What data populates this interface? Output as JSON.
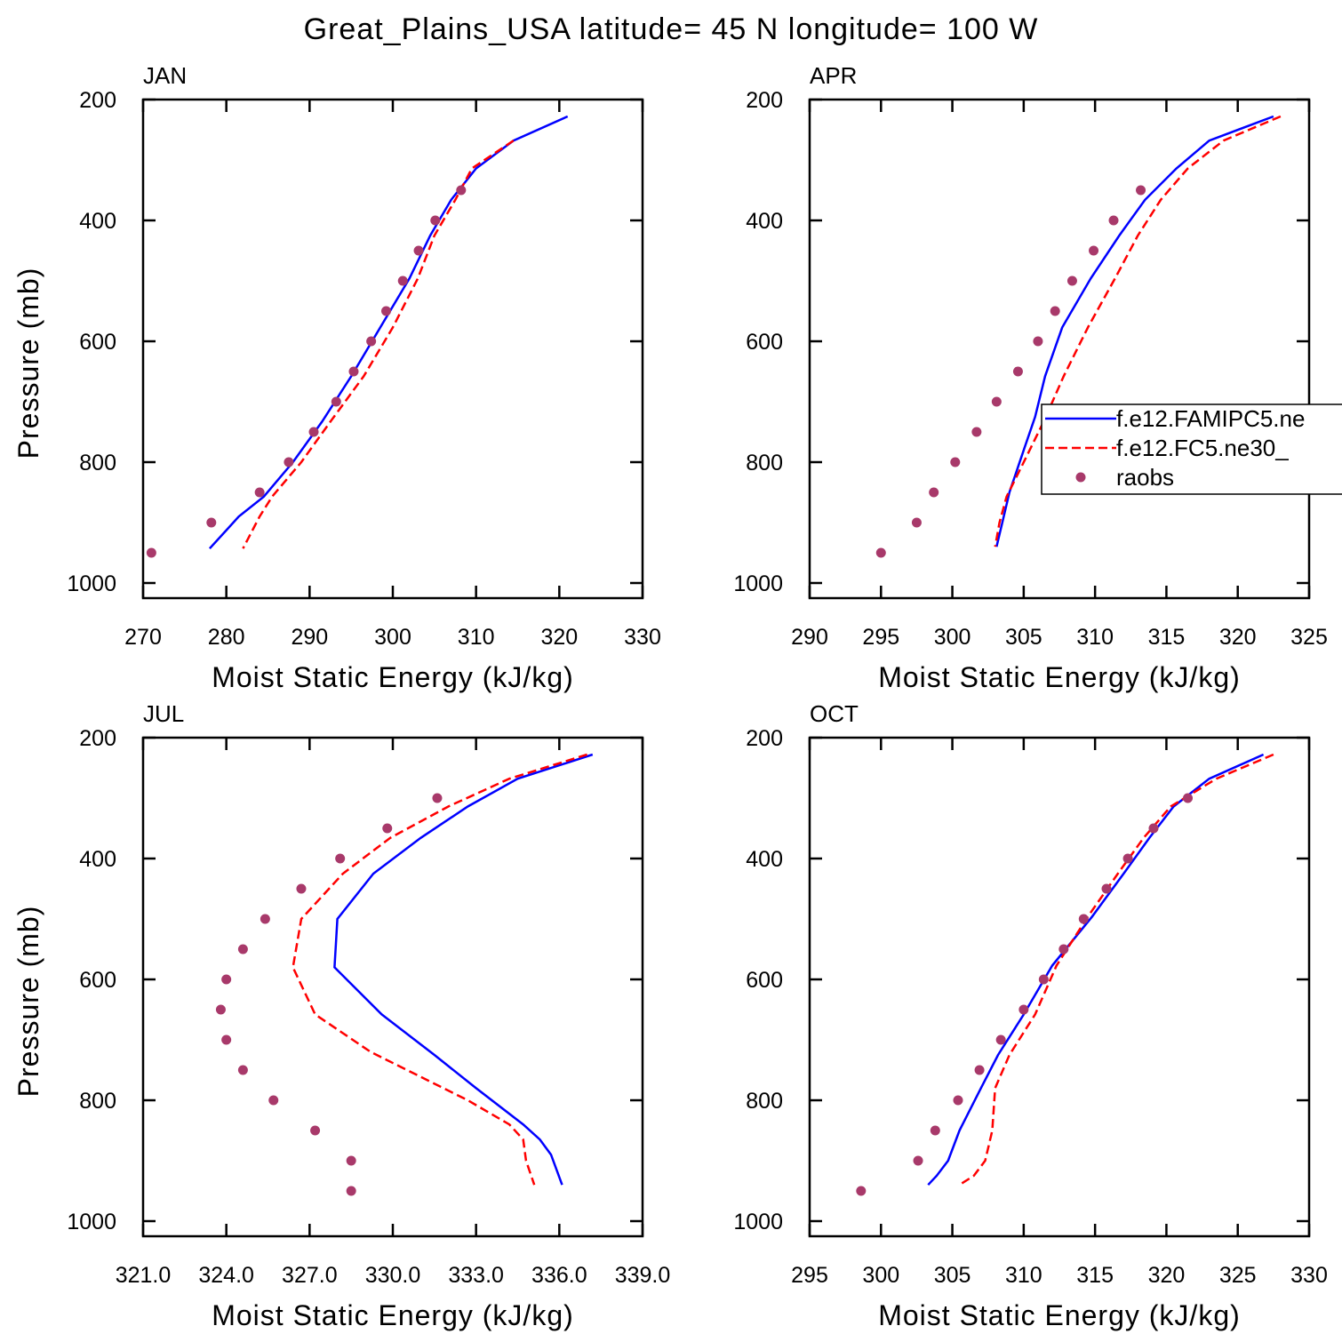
{
  "title": "Great_Plains_USA  latitude= 45 N longitude= 100 W",
  "chart_data": [
    {
      "type": "line",
      "title": "JAN",
      "xlabel": "Moist Static Energy (kJ/kg)",
      "ylabel": "Pressure (mb)",
      "xlim": [
        270,
        330
      ],
      "xticks": [
        270,
        280,
        290,
        300,
        310,
        320,
        330
      ],
      "ylim": [
        1025,
        200
      ],
      "yticks": [
        200,
        400,
        600,
        800,
        1000
      ],
      "series": [
        {
          "color": "#0000ff",
          "style": "solid",
          "values": [
            321.0,
            314.5,
            310.0,
            307.0,
            304.5,
            302.0,
            298.5,
            295.0,
            291.5,
            288.0,
            284.5,
            281.5,
            278.0
          ],
          "levels": [
            228,
            268,
            314,
            366,
            425,
            496,
            577,
            658,
            733,
            800,
            857,
            890,
            943
          ]
        },
        {
          "color": "#ff0000",
          "style": "dashed",
          "values": [
            314.5,
            309.5,
            307.5,
            305.0,
            303.0,
            300.0,
            296.5,
            292.5,
            289.0,
            285.5,
            284.0,
            282.0
          ],
          "levels": [
            268,
            314,
            366,
            425,
            496,
            577,
            658,
            733,
            800,
            857,
            890,
            943
          ]
        },
        {
          "color": "#a8396a",
          "style": "markers",
          "values": [
            271.0,
            278.2,
            284.0,
            287.5,
            290.5,
            293.2,
            295.3,
            297.4,
            299.2,
            301.2,
            303.1,
            305.1,
            308.2
          ],
          "levels": [
            950,
            900,
            850,
            800,
            750,
            700,
            650,
            600,
            550,
            500,
            450,
            400,
            350
          ]
        }
      ]
    },
    {
      "type": "line",
      "title": "APR",
      "xlabel": "Moist Static Energy (kJ/kg)",
      "xlim": [
        290,
        325
      ],
      "xticks": [
        290,
        295,
        300,
        305,
        310,
        315,
        320,
        325
      ],
      "ylim": [
        1025,
        200
      ],
      "yticks": [
        200,
        400,
        600,
        800,
        1000
      ],
      "legend": "right",
      "series": [
        {
          "name": "f.e12.FAMIPC5.ne",
          "color": "#0000ff",
          "style": "solid",
          "values": [
            322.5,
            318.0,
            315.7,
            313.5,
            311.7,
            309.7,
            307.7,
            306.5,
            305.8,
            305.0,
            304.0,
            303.5,
            303.1
          ],
          "levels": [
            228,
            268,
            314,
            366,
            425,
            496,
            577,
            658,
            725,
            780,
            850,
            900,
            940
          ]
        },
        {
          "name": "f.e12.FC5.ne30_",
          "color": "#ff0000",
          "style": "dashed",
          "values": [
            323.0,
            319.0,
            316.5,
            314.6,
            313.0,
            311.4,
            309.5,
            307.8,
            306.4,
            305.0,
            303.8,
            303.3,
            303.0
          ],
          "levels": [
            228,
            268,
            314,
            366,
            425,
            496,
            577,
            658,
            733,
            800,
            857,
            900,
            940
          ]
        },
        {
          "name": "raobs",
          "color": "#a8396a",
          "style": "markers",
          "values": [
            295.0,
            297.5,
            298.7,
            300.2,
            301.7,
            303.1,
            304.6,
            306.0,
            307.2,
            308.4,
            309.9,
            311.3,
            313.2
          ],
          "levels": [
            950,
            900,
            850,
            800,
            750,
            700,
            650,
            600,
            550,
            500,
            450,
            400,
            350
          ]
        }
      ]
    },
    {
      "type": "line",
      "title": "JUL",
      "xlabel": "Moist Static Energy (kJ/kg)",
      "ylabel": "Pressure (mb)",
      "xlim": [
        321,
        339
      ],
      "xticks": [
        {
          "value": 321,
          "label": "321.0"
        },
        {
          "value": 324,
          "label": "324.0"
        },
        {
          "value": 327,
          "label": "327.0"
        },
        {
          "value": 330,
          "label": "330.0"
        },
        {
          "value": 333,
          "label": "333.0"
        },
        {
          "value": 336,
          "label": "336.0"
        },
        {
          "value": 339,
          "label": "339.0"
        }
      ],
      "ylim": [
        1025,
        200
      ],
      "yticks": [
        200,
        400,
        600,
        800,
        1000
      ],
      "series": [
        {
          "color": "#0000ff",
          "style": "solid",
          "values": [
            337.2,
            334.5,
            332.7,
            331.0,
            329.3,
            328.0,
            327.9,
            329.6,
            331.5,
            333.0,
            334.7,
            335.3,
            335.7,
            336.1
          ],
          "levels": [
            228,
            268,
            314,
            366,
            425,
            500,
            580,
            658,
            725,
            780,
            840,
            865,
            890,
            940
          ]
        },
        {
          "color": "#ff0000",
          "style": "dashed",
          "values": [
            337.0,
            334.2,
            332.0,
            329.9,
            328.2,
            326.7,
            326.4,
            327.2,
            329.2,
            332.7,
            334.2,
            334.7,
            334.8,
            335.1
          ],
          "levels": [
            228,
            268,
            314,
            366,
            425,
            500,
            580,
            658,
            720,
            800,
            840,
            865,
            900,
            940
          ]
        },
        {
          "color": "#a8396a",
          "style": "markers",
          "values": [
            328.5,
            328.5,
            327.2,
            325.7,
            324.6,
            324.0,
            323.8,
            324.0,
            324.6,
            325.4,
            326.7,
            328.1,
            329.8,
            331.6
          ],
          "levels": [
            950,
            900,
            850,
            800,
            750,
            700,
            650,
            600,
            550,
            500,
            450,
            400,
            350,
            300
          ]
        }
      ]
    },
    {
      "type": "line",
      "title": "OCT",
      "xlabel": "Moist Static Energy (kJ/kg)",
      "xlim": [
        295,
        330
      ],
      "xticks": [
        295,
        300,
        305,
        310,
        315,
        320,
        325,
        330
      ],
      "ylim": [
        1025,
        200
      ],
      "yticks": [
        200,
        400,
        600,
        800,
        1000
      ],
      "series": [
        {
          "color": "#0000ff",
          "style": "solid",
          "values": [
            326.8,
            323.0,
            320.5,
            318.8,
            317.0,
            314.8,
            312.0,
            310.0,
            308.2,
            307.0,
            305.5,
            304.7,
            303.9,
            303.3
          ],
          "levels": [
            228,
            268,
            314,
            366,
            425,
            496,
            577,
            658,
            725,
            780,
            850,
            900,
            925,
            940
          ]
        },
        {
          "color": "#ff0000",
          "style": "dashed",
          "values": [
            327.5,
            323.5,
            320.3,
            318.4,
            316.6,
            314.5,
            312.3,
            310.8,
            309.0,
            308.0,
            307.8,
            307.3,
            306.5,
            305.5
          ],
          "levels": [
            228,
            268,
            314,
            366,
            425,
            496,
            577,
            658,
            725,
            780,
            850,
            900,
            925,
            940
          ]
        },
        {
          "color": "#a8396a",
          "style": "markers",
          "values": [
            298.6,
            302.6,
            303.8,
            305.4,
            306.9,
            308.4,
            310.0,
            311.4,
            312.8,
            314.2,
            315.8,
            317.3,
            319.1,
            321.5
          ],
          "levels": [
            950,
            900,
            850,
            800,
            750,
            700,
            650,
            600,
            550,
            500,
            450,
            400,
            350,
            300
          ]
        }
      ]
    }
  ]
}
